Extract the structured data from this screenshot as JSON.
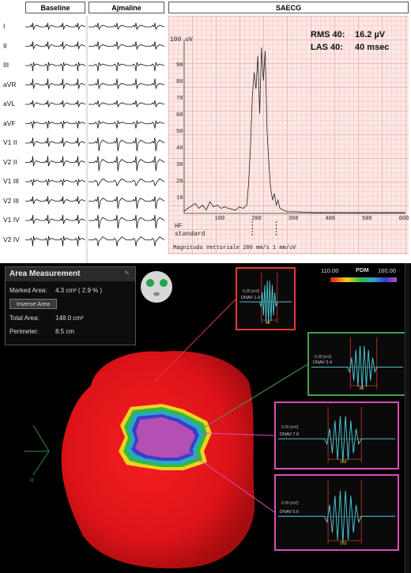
{
  "headers": {
    "baseline": "Baseline",
    "ajmaline": "Ajmaline",
    "saecg": "SAECG"
  },
  "leads": [
    "I",
    "II",
    "III",
    "aVR",
    "aVL",
    "aVF",
    "V1 II",
    "V2 II",
    "V1 III",
    "V2 III",
    "V1 IV",
    "V2 IV"
  ],
  "saecg": {
    "rms_label": "RMS 40:",
    "rms_value": "16.2 µV",
    "las_label": "LAS 40:",
    "las_value": "40 msec",
    "y_unit": "100 uV",
    "y_ticks": [
      "90",
      "80",
      "70",
      "60",
      "50",
      "40",
      "30",
      "20",
      "10"
    ],
    "x_ticks": [
      "100",
      "200",
      "300",
      "400",
      "500",
      "600 ms"
    ],
    "hf": "HF",
    "standard": "standard",
    "footer": "Magnitudo Vettoriale   200 mm/s  1 mm/uV"
  },
  "area": {
    "title": "Area Measurement",
    "marked_label": "Marked Area:",
    "marked_value": "4.3 cm² ( 2.9 % )",
    "inverse_button": "Inverse Area",
    "total_label": "Total Area:",
    "total_value": "148.0 cm²",
    "perimeter_label": "Perimeter:",
    "perimeter_value": "8.5 cm"
  },
  "pdm": {
    "min": "110.00",
    "label": "PDM",
    "max": "160.00"
  },
  "axis_label": "R",
  "egm": [
    {
      "scale": "0.35 [mV]",
      "name": "DNAV 1.9",
      "width": "46",
      "color": "#e53935"
    },
    {
      "scale": "0.35 [mV]",
      "name": "DNAV 3.4",
      "width": "30",
      "color": "#43a047"
    },
    {
      "scale": "0.35 [mV]",
      "name": "DNAV 7.9",
      "width": "162",
      "color": "#d94fb5"
    },
    {
      "scale": "0.35 [mV]",
      "name": "DNAV 5.6",
      "width": "162",
      "color": "#d94fb5"
    }
  ],
  "colors": {
    "red_map": "#e3131b",
    "scar_purple": "#b04fb0",
    "egm_trace": "#4fd0e0"
  }
}
